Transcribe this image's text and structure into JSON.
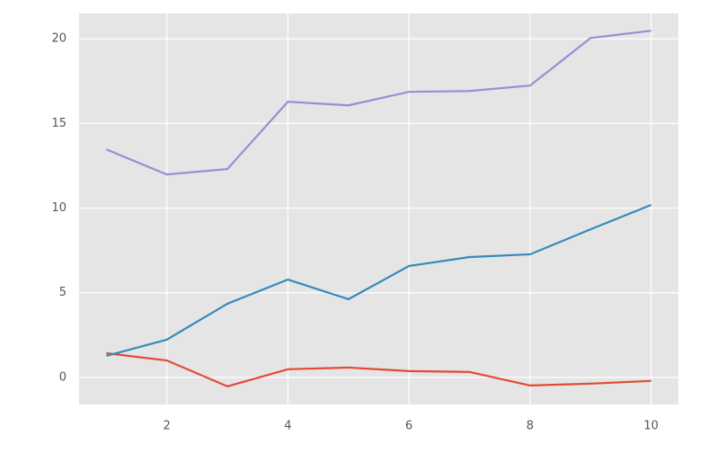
{
  "chart_data": {
    "type": "line",
    "x": [
      1,
      2,
      3,
      4,
      5,
      6,
      7,
      8,
      9,
      10
    ],
    "series": [
      {
        "color": "#E24A33",
        "values": [
          1.43,
          1.0,
          -0.53,
          0.48,
          0.58,
          0.37,
          0.32,
          -0.48,
          -0.37,
          -0.21
        ]
      },
      {
        "color": "#348ABD",
        "values": [
          1.27,
          2.23,
          4.35,
          5.78,
          4.62,
          6.58,
          7.11,
          7.27,
          8.75,
          10.19
        ]
      },
      {
        "color": "#988ED5",
        "values": [
          13.47,
          11.99,
          12.31,
          16.29,
          16.07,
          16.87,
          16.92,
          17.24,
          20.05,
          20.48
        ]
      }
    ],
    "xlim": [
      0.55,
      10.45
    ],
    "xticks": [
      2,
      4,
      6,
      8,
      10
    ],
    "ylim": [
      -1.6,
      21.5
    ],
    "yticks": [
      0,
      5,
      10,
      15,
      20
    ],
    "grid": true
  }
}
